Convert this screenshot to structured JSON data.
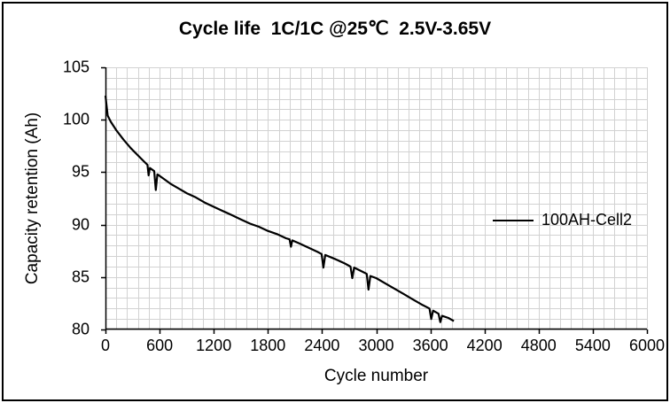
{
  "title": "Cycle life  1C/1C @25℃  2.5V-3.65V",
  "colors": {
    "grid": "#d2d2d2",
    "axis": "#000000",
    "series": "#000000",
    "background": "#ffffff"
  },
  "chart_data": {
    "type": "line",
    "title": "Cycle life  1C/1C @25℃  2.5V-3.65V",
    "xlabel": "Cycle number",
    "ylabel": "Capacity retention (Ah)",
    "xlim": [
      0,
      6000
    ],
    "ylim": [
      80,
      105
    ],
    "x_major_ticks": [
      0,
      600,
      1200,
      1800,
      2400,
      3000,
      3600,
      4200,
      4800,
      5400,
      6000
    ],
    "y_major_ticks": [
      80,
      85,
      90,
      95,
      100,
      105
    ],
    "x_minor_step": 120,
    "y_minor_step": 1,
    "grid": true,
    "legend_position": "right-middle",
    "series": [
      {
        "name": "100AH-Cell2",
        "color": "#000000",
        "points": [
          [
            0,
            102.3
          ],
          [
            25,
            100.4
          ],
          [
            60,
            99.8
          ],
          [
            120,
            99.0
          ],
          [
            200,
            98.1
          ],
          [
            280,
            97.3
          ],
          [
            360,
            96.6
          ],
          [
            430,
            96.0
          ],
          [
            465,
            95.7
          ],
          [
            478,
            94.7
          ],
          [
            492,
            95.4
          ],
          [
            540,
            95.1
          ],
          [
            558,
            93.3
          ],
          [
            575,
            94.8
          ],
          [
            640,
            94.4
          ],
          [
            720,
            93.9
          ],
          [
            800,
            93.5
          ],
          [
            900,
            93.0
          ],
          [
            1000,
            92.6
          ],
          [
            1100,
            92.1
          ],
          [
            1200,
            91.7
          ],
          [
            1300,
            91.3
          ],
          [
            1400,
            90.9
          ],
          [
            1500,
            90.5
          ],
          [
            1600,
            90.1
          ],
          [
            1700,
            89.8
          ],
          [
            1800,
            89.4
          ],
          [
            1900,
            89.1
          ],
          [
            2000,
            88.7
          ],
          [
            2040,
            88.6
          ],
          [
            2055,
            87.9
          ],
          [
            2070,
            88.5
          ],
          [
            2150,
            88.2
          ],
          [
            2250,
            87.8
          ],
          [
            2350,
            87.4
          ],
          [
            2395,
            87.2
          ],
          [
            2415,
            85.9
          ],
          [
            2435,
            87.1
          ],
          [
            2550,
            86.7
          ],
          [
            2650,
            86.3
          ],
          [
            2715,
            86.0
          ],
          [
            2735,
            84.9
          ],
          [
            2755,
            85.9
          ],
          [
            2850,
            85.5
          ],
          [
            2895,
            85.3
          ],
          [
            2915,
            83.8
          ],
          [
            2935,
            85.1
          ],
          [
            3000,
            84.9
          ],
          [
            3100,
            84.4
          ],
          [
            3200,
            83.9
          ],
          [
            3300,
            83.4
          ],
          [
            3400,
            82.9
          ],
          [
            3500,
            82.4
          ],
          [
            3590,
            82.0
          ],
          [
            3610,
            81.0
          ],
          [
            3630,
            81.8
          ],
          [
            3690,
            81.5
          ],
          [
            3710,
            80.7
          ],
          [
            3730,
            81.3
          ],
          [
            3800,
            81.1
          ],
          [
            3860,
            80.8
          ]
        ]
      }
    ]
  }
}
